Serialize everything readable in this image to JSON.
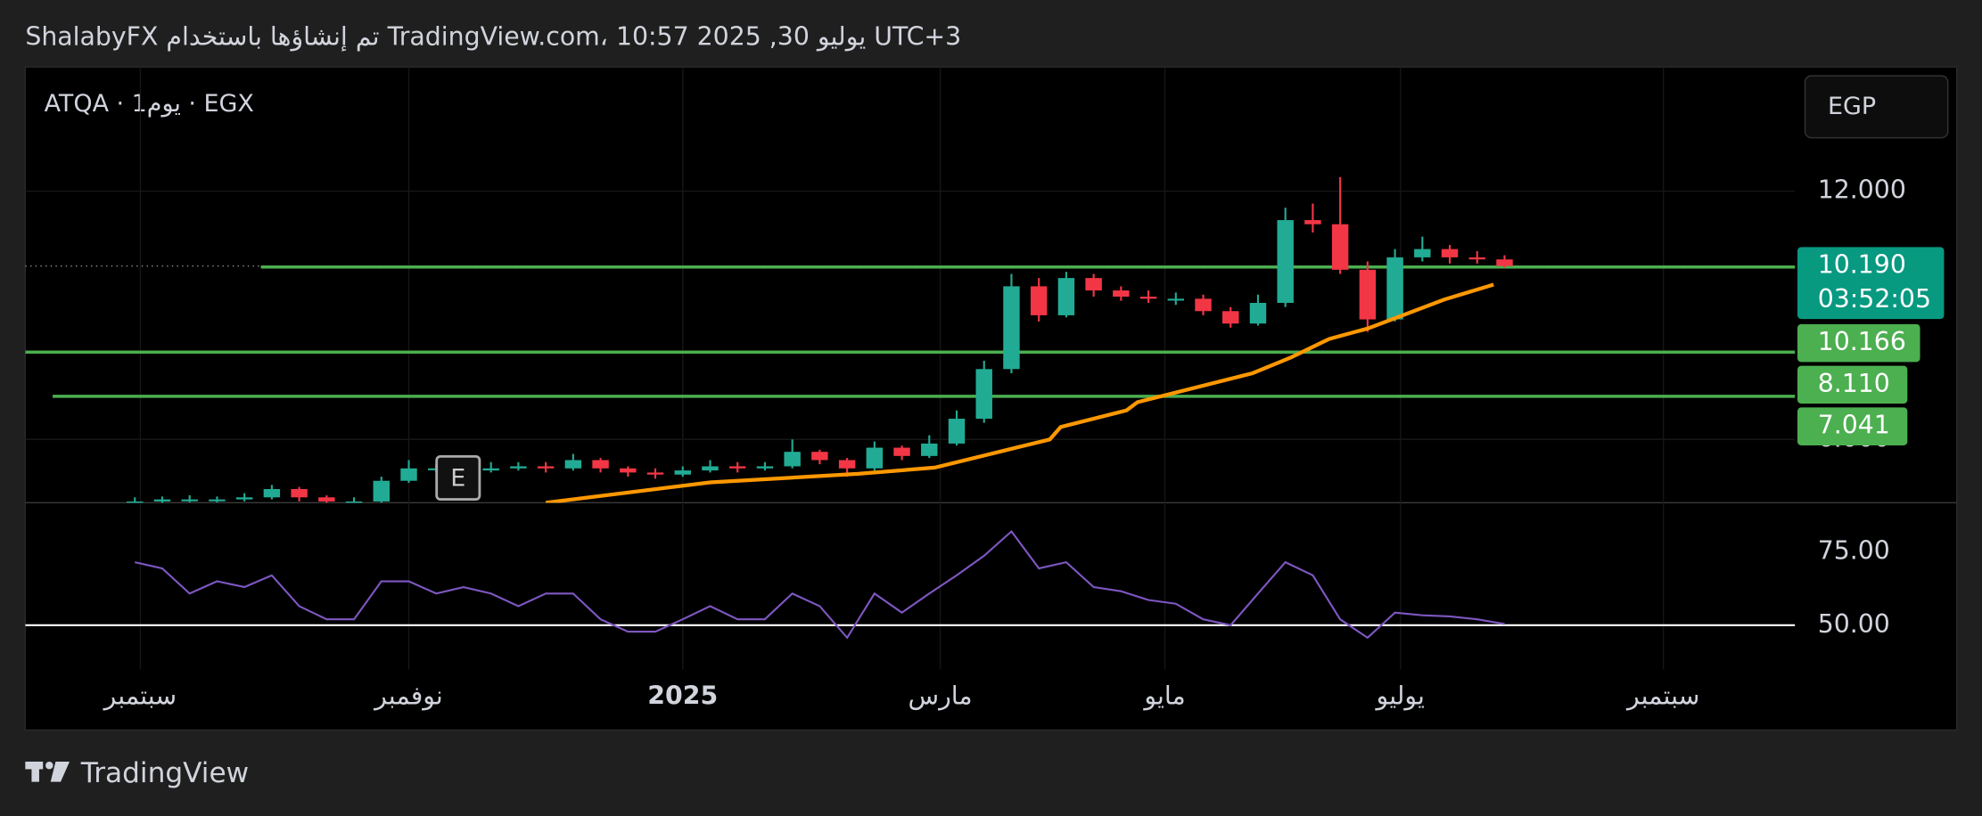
{
  "header": {
    "title": "ShalabyFX تم إنشاؤها باستخدام TradingView.com، 10:57 2025 ,30 يوليو UTC+3",
    "symbol": "ATQA · 1يوم · EGX",
    "currency": "EGP",
    "footer": "TradingView"
  },
  "chart_data": [
    {
      "type": "candlestick",
      "color_up": "#22ab94",
      "color_down": "#f23645",
      "x": [
        20,
        25,
        30,
        35,
        40,
        45,
        50,
        55,
        60,
        65,
        70,
        75,
        80,
        85,
        90,
        95,
        100,
        105,
        110,
        115,
        120,
        125,
        130,
        135,
        140,
        145,
        150,
        155,
        160,
        165,
        170,
        175,
        180,
        185,
        190,
        195,
        200,
        205,
        210,
        215,
        220,
        225,
        230,
        235,
        240,
        245,
        250,
        255,
        260,
        265,
        270
      ],
      "open": [
        4.45,
        4.5,
        4.55,
        4.55,
        4.55,
        4.6,
        4.8,
        4.6,
        4.5,
        4.5,
        5.0,
        5.3,
        5.3,
        5.25,
        5.3,
        5.35,
        5.3,
        5.5,
        5.3,
        5.2,
        5.15,
        5.25,
        5.35,
        5.3,
        5.35,
        5.7,
        5.5,
        5.3,
        5.8,
        5.6,
        5.9,
        6.5,
        7.7,
        9.7,
        9.0,
        9.9,
        9.6,
        9.45,
        9.4,
        9.4,
        9.1,
        8.8,
        9.3,
        11.3,
        11.2,
        10.1,
        8.9,
        10.4,
        10.6,
        10.4,
        10.35
      ],
      "high": [
        4.6,
        4.62,
        4.65,
        4.62,
        4.7,
        4.9,
        4.85,
        4.65,
        4.6,
        5.1,
        5.5,
        5.4,
        5.4,
        5.45,
        5.45,
        5.45,
        5.65,
        5.55,
        5.35,
        5.3,
        5.35,
        5.5,
        5.45,
        5.45,
        6.0,
        5.75,
        5.55,
        5.95,
        5.85,
        6.1,
        6.7,
        7.9,
        10.0,
        9.9,
        10.05,
        10.0,
        9.7,
        9.6,
        9.55,
        9.5,
        9.2,
        9.5,
        11.6,
        11.7,
        12.34,
        10.3,
        10.6,
        10.9,
        10.7,
        10.55,
        10.45
      ],
      "low": [
        4.4,
        4.45,
        4.48,
        4.48,
        4.5,
        4.55,
        4.5,
        4.42,
        4.4,
        4.45,
        4.95,
        5.2,
        5.15,
        5.2,
        5.25,
        5.2,
        5.25,
        5.2,
        5.1,
        5.05,
        5.1,
        5.2,
        5.2,
        5.25,
        5.3,
        5.4,
        5.1,
        5.25,
        5.5,
        5.55,
        5.85,
        6.4,
        7.6,
        8.85,
        8.95,
        9.45,
        9.35,
        9.3,
        9.25,
        9.0,
        8.7,
        8.75,
        9.2,
        11.0,
        10.0,
        8.6,
        8.85,
        10.3,
        10.25,
        10.25,
        10.15
      ],
      "close": [
        4.5,
        4.55,
        4.55,
        4.55,
        4.6,
        4.8,
        4.6,
        4.5,
        4.5,
        5.0,
        5.3,
        5.3,
        5.25,
        5.3,
        5.35,
        5.3,
        5.5,
        5.3,
        5.2,
        5.15,
        5.25,
        5.35,
        5.3,
        5.35,
        5.7,
        5.5,
        5.3,
        5.8,
        5.6,
        5.9,
        6.5,
        7.7,
        9.7,
        9.0,
        9.9,
        9.6,
        9.45,
        9.4,
        9.4,
        9.1,
        8.8,
        9.3,
        11.3,
        11.2,
        10.1,
        8.9,
        10.4,
        10.6,
        10.4,
        10.35,
        10.19
      ],
      "ma": {
        "color": "#ff9800",
        "x": [
          95,
          125,
          152,
          166,
          187,
          189,
          201,
          203,
          224,
          231,
          238,
          245,
          259,
          268
        ],
        "values": [
          4.47,
          4.96,
          5.17,
          5.32,
          6.0,
          6.3,
          6.7,
          6.9,
          7.6,
          7.98,
          8.43,
          8.68,
          9.38,
          9.74
        ]
      },
      "hlines": [
        {
          "value": 10.166,
          "label": "10.166",
          "x_start": 43
        },
        {
          "value": 8.11,
          "label": "8.110",
          "x_start": 0
        },
        {
          "value": 7.041,
          "label": "7.041",
          "x_start": 5
        }
      ],
      "hline_color": "#4caf50",
      "last_price": {
        "value": 10.19,
        "label": "10.190",
        "countdown": "03:52:05",
        "color": "#089981"
      },
      "annotations": [
        {
          "x": 79,
          "value": 5.07,
          "text": "E"
        }
      ],
      "xlim": [
        0,
        323
      ],
      "ylim": [
        4.47,
        15.0
      ],
      "yticks": [
        {
          "value": 12,
          "label": "12.000"
        },
        {
          "value": 6,
          "label": "6.000"
        }
      ],
      "grid": true
    },
    {
      "type": "line",
      "color": "#7e57c2",
      "x": [
        20,
        25,
        30,
        35,
        40,
        45,
        50,
        55,
        60,
        65,
        70,
        75,
        80,
        85,
        90,
        95,
        100,
        105,
        110,
        115,
        120,
        125,
        130,
        135,
        140,
        145,
        150,
        155,
        160,
        165,
        170,
        175,
        180,
        185,
        190,
        195,
        200,
        205,
        210,
        215,
        220,
        225,
        230,
        235,
        240,
        245,
        250,
        255,
        260,
        265,
        270
      ],
      "values": [
        71.5,
        69.4,
        60.8,
        65,
        63,
        67,
        56.5,
        52,
        52,
        65,
        65,
        60.8,
        63,
        60.8,
        56.5,
        60.8,
        60.8,
        52,
        47.8,
        47.8,
        52,
        56.5,
        52,
        52,
        60.8,
        56.5,
        45.7,
        60.8,
        54.3,
        60.8,
        67,
        73.7,
        82,
        69.4,
        71.5,
        63,
        61.6,
        58.6,
        57.3,
        52,
        50,
        60.8,
        71.5,
        67,
        52,
        45.7,
        54.3,
        53.4,
        53,
        52,
        50.4
      ],
      "reference": 50,
      "xlim": [
        0,
        323
      ],
      "ylim": [
        34.9,
        91.8
      ],
      "yticks": [
        {
          "value": 75,
          "label": "75.00"
        },
        {
          "value": 50,
          "label": "50.00"
        }
      ],
      "xticks": [
        {
          "value": 21,
          "label": "سبتمبر"
        },
        {
          "value": 70,
          "label": "نوفمبر"
        },
        {
          "value": 120,
          "label": "2025"
        },
        {
          "value": 167,
          "label": "مارس"
        },
        {
          "value": 208,
          "label": "مايو"
        },
        {
          "value": 251,
          "label": "يوليو"
        },
        {
          "value": 299,
          "label": "سبتمبر"
        }
      ],
      "grid": true
    }
  ]
}
